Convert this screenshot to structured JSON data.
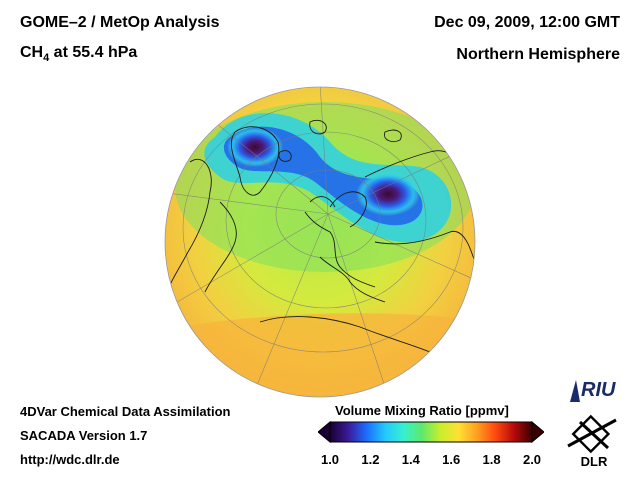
{
  "header": {
    "title_line1": "GOME–2 / MetOp Analysis",
    "title_line2_prefix": "CH",
    "title_line2_sub": "4",
    "title_line2_suffix": " at 55.4 hPa",
    "datetime": "Dec 09, 2009, 12:00 GMT",
    "region": "Northern Hemisphere"
  },
  "footer": {
    "line1": "4DVar Chemical Data Assimilation",
    "line2": "SACADA Version 1.7",
    "line3": "http://wdc.dlr.de"
  },
  "colorbar": {
    "title": "Volume Mixing Ratio [ppmv]",
    "ticks": [
      "1.0",
      "1.2",
      "1.4",
      "1.6",
      "1.8",
      "2.0"
    ],
    "min": 1.0,
    "max": 2.0,
    "colors": [
      "#1a0033",
      "#3a1b9a",
      "#1c6dff",
      "#23c8ff",
      "#36f0d0",
      "#5ee86a",
      "#c8ee2e",
      "#ffe033",
      "#ffa020",
      "#ff4a10",
      "#b80a0a",
      "#3a0000"
    ]
  },
  "logos": {
    "riu_text": "RIU",
    "dlr_text": "DLR"
  },
  "map": {
    "projection": "orthographic-north-polar",
    "background_value_color": "#f4c446",
    "low_value_color": "#4a1040"
  }
}
